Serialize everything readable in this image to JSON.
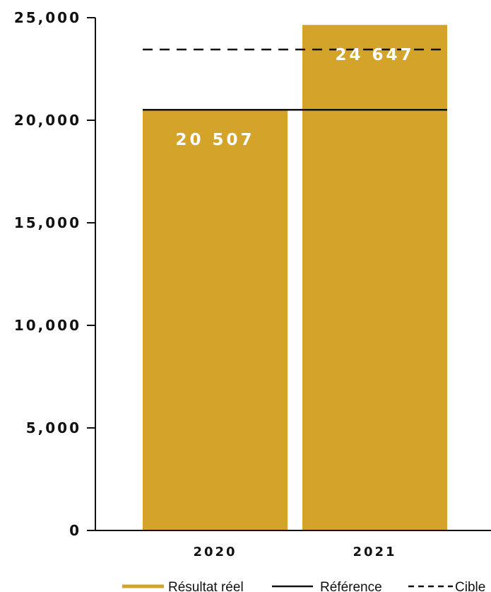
{
  "chart_data": {
    "type": "bar",
    "categories": [
      "2020",
      "2021"
    ],
    "series": [
      {
        "name": "Résultat réel",
        "values": [
          20507,
          24647
        ]
      }
    ],
    "data_labels": [
      "20 507",
      "24 647"
    ],
    "reference_lines": [
      {
        "name": "Référence",
        "value": 20507,
        "style": "solid"
      },
      {
        "name": "Cible",
        "value": 23450,
        "style": "dashed"
      }
    ],
    "y_ticks": [
      0,
      5000,
      10000,
      15000,
      20000,
      25000
    ],
    "y_tick_labels": [
      "0",
      "5,000",
      "10,000",
      "15,000",
      "20,000",
      "25,000"
    ],
    "ylim": [
      0,
      25000
    ],
    "title": "",
    "xlabel": "",
    "ylabel": "",
    "grid": false,
    "legend_position": "bottom-right",
    "colors": {
      "bar": "#d4a32a",
      "axis": "#111111",
      "line": "#111111",
      "label": "#ffffff"
    }
  }
}
